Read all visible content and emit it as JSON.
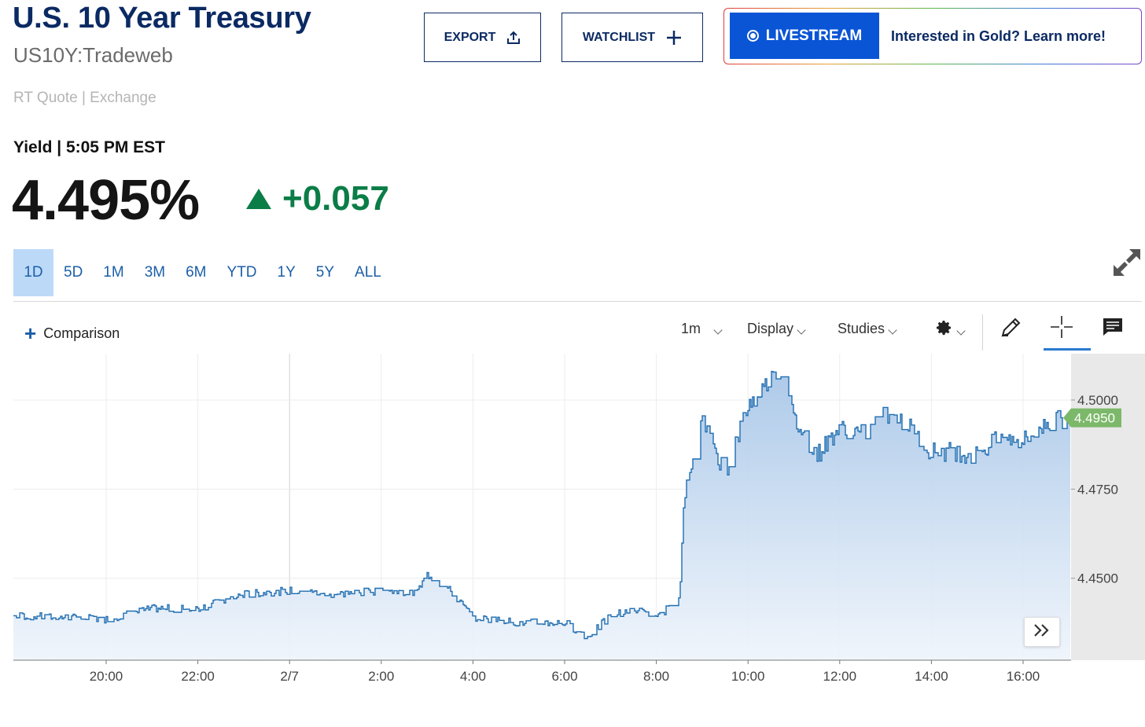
{
  "header": {
    "title": "U.S. 10 Year Treasury",
    "symbol": "US10Y:Tradeweb",
    "quote_type": "RT Quote | Exchange"
  },
  "actions": {
    "export_label": "EXPORT",
    "watchlist_label": "WATCHLIST"
  },
  "promo": {
    "livestream_label": "LIVESTREAM",
    "link_text": "Interested in Gold? Learn more!"
  },
  "quote": {
    "yield_label": "Yield | 5:05 PM EST",
    "price": "4.495%",
    "change": "+0.057",
    "direction": "up"
  },
  "ranges": [
    "1D",
    "5D",
    "1M",
    "3M",
    "6M",
    "YTD",
    "1Y",
    "5Y",
    "ALL"
  ],
  "active_range": "1D",
  "chart_toolbar": {
    "comparison_label": "Comparison",
    "interval_label": "1m",
    "display_label": "Display",
    "studies_label": "Studies"
  },
  "colors": {
    "title": "#0b2a63",
    "up": "#0b7d46",
    "line": "#1f6db0",
    "accent": "#0a55d6",
    "price_tag": "#7cb86a"
  },
  "icons": {
    "export": "share-upload-icon",
    "watchlist": "plus-icon",
    "expand": "expand-arrows-icon",
    "settings": "gear-icon",
    "draw": "pencil-icon",
    "crosshair": "crosshair-icon",
    "comment": "comment-icon",
    "scroll": "double-chevron-right-icon"
  },
  "chart_data": {
    "type": "area",
    "x_ticks": [
      "20:00",
      "22:00",
      "2/7",
      "2:00",
      "4:00",
      "6:00",
      "8:00",
      "10:00",
      "12:00",
      "14:00",
      "16:00"
    ],
    "y_ticks": [
      "4.4500",
      "4.4750",
      "4.5000"
    ],
    "ylim": [
      4.427,
      4.513
    ],
    "last_value_label": "4.4950",
    "series": [
      {
        "values_by_hour": [
          [
            "18:00",
            4.4395
          ],
          [
            "19:00",
            4.439
          ],
          [
            "20:00",
            4.4385
          ],
          [
            "21:00",
            4.4415
          ],
          [
            "22:00",
            4.4415
          ],
          [
            "23:00",
            4.4455
          ],
          [
            "0:00",
            4.4465
          ],
          [
            "1:00",
            4.4455
          ],
          [
            "2:00",
            4.4465
          ],
          [
            "2:45",
            4.4455
          ],
          [
            "3:00",
            4.451
          ],
          [
            "3:30",
            4.4465
          ],
          [
            "4:00",
            4.439
          ],
          [
            "5:00",
            4.4375
          ],
          [
            "6:00",
            4.4375
          ],
          [
            "6:30",
            4.4335
          ],
          [
            "7:00",
            4.4395
          ],
          [
            "7:30",
            4.4415
          ],
          [
            "8:00",
            4.4385
          ],
          [
            "8:30",
            4.445
          ],
          [
            "8:35",
            4.471
          ],
          [
            "9:00",
            4.4945
          ],
          [
            "9:30",
            4.4795
          ],
          [
            "10:00",
            4.4985
          ],
          [
            "10:40",
            4.5085
          ],
          [
            "11:00",
            4.4945
          ],
          [
            "11:30",
            4.4845
          ],
          [
            "12:00",
            4.4925
          ],
          [
            "12:30",
            4.4905
          ],
          [
            "13:00",
            4.4965
          ],
          [
            "13:30",
            4.4925
          ],
          [
            "14:00",
            4.4855
          ],
          [
            "14:30",
            4.4855
          ],
          [
            "15:00",
            4.4845
          ],
          [
            "15:30",
            4.4895
          ],
          [
            "16:00",
            4.4885
          ],
          [
            "16:30",
            4.4935
          ],
          [
            "17:00",
            4.495
          ]
        ]
      }
    ]
  }
}
